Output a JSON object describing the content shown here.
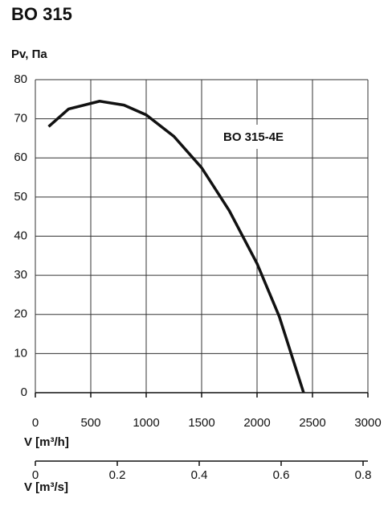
{
  "chart_data": {
    "type": "line",
    "title": "BO 315",
    "y_label": "Pv, Па",
    "x_label": "V [m³/h]",
    "x2_label": "V [m³/s]",
    "annotation": "BO 315-4E",
    "xlim": [
      0,
      3000
    ],
    "xticks": [
      0,
      500,
      1000,
      1500,
      2000,
      2500,
      3000
    ],
    "ylim": [
      0,
      80
    ],
    "yticks": [
      0,
      10,
      20,
      30,
      40,
      50,
      60,
      70,
      80
    ],
    "x2lim": [
      0,
      0.8
    ],
    "x2ticks": [
      0,
      0.2,
      0.4,
      0.6,
      0.8
    ],
    "grid": true,
    "series": [
      {
        "name": "BO 315-4E",
        "color": "#111111",
        "x": [
          120,
          300,
          580,
          800,
          1000,
          1250,
          1500,
          1750,
          2000,
          2200,
          2420
        ],
        "values": [
          68,
          72.5,
          74.5,
          73.5,
          71,
          65.5,
          57.5,
          46.5,
          33,
          19.5,
          0
        ]
      }
    ]
  }
}
